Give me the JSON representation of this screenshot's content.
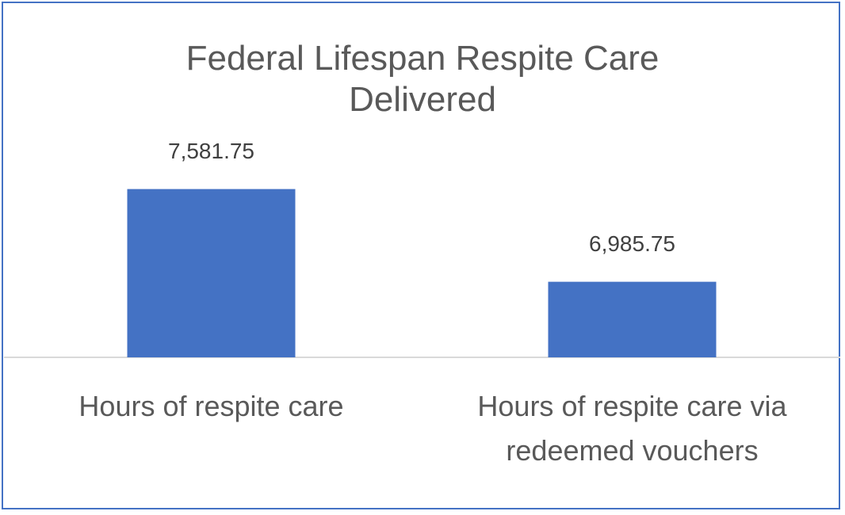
{
  "chart_data": {
    "type": "bar",
    "title": "Federal Lifespan Respite Care Delivered",
    "categories": [
      "Hours of respite care",
      "Hours of respite care via redeemed vouchers"
    ],
    "values": [
      7581.75,
      6985.75
    ],
    "value_labels": [
      "7,581.75",
      "6,985.75"
    ],
    "color": "#4472c4",
    "ylim": [
      6500,
      8000
    ]
  }
}
